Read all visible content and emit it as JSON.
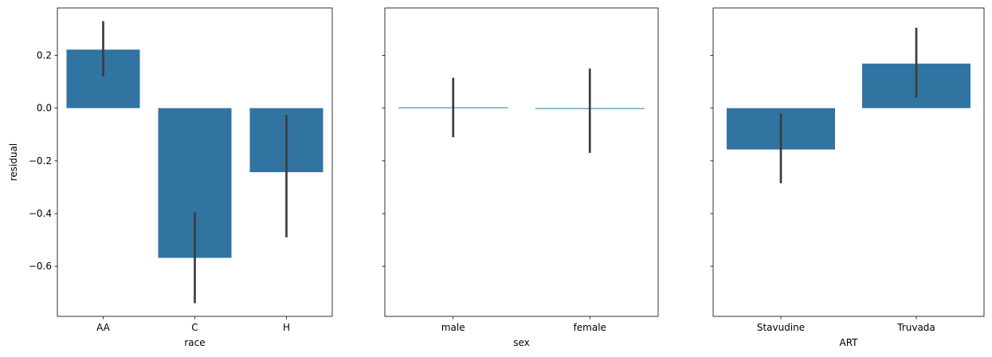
{
  "chart_data": [
    {
      "type": "bar",
      "xlabel": "race",
      "ylabel": "residual",
      "ylim": [
        -0.79,
        0.38
      ],
      "yticks": [
        0.2,
        0.0,
        -0.2,
        -0.4,
        -0.6
      ],
      "ytick_labels": [
        "0.2",
        "0.0",
        "−0.2",
        "−0.4",
        "−0.6"
      ],
      "categories": [
        "AA",
        "C",
        "H"
      ],
      "values": [
        0.222,
        -0.568,
        -0.243
      ],
      "ci_low": [
        0.12,
        -0.74,
        -0.49
      ],
      "ci_high": [
        0.33,
        -0.395,
        -0.025
      ]
    },
    {
      "type": "bar",
      "xlabel": "sex",
      "ylabel": "",
      "ylim": [
        -0.79,
        0.38
      ],
      "yticks": [
        0.2,
        0.0,
        -0.2,
        -0.4,
        -0.6
      ],
      "categories": [
        "male",
        "female"
      ],
      "values": [
        0.003,
        -0.003
      ],
      "ci_low": [
        -0.11,
        -0.17
      ],
      "ci_high": [
        0.115,
        0.15
      ]
    },
    {
      "type": "bar",
      "xlabel": "ART",
      "ylabel": "",
      "ylim": [
        -0.79,
        0.38
      ],
      "yticks": [
        0.2,
        0.0,
        -0.2,
        -0.4,
        -0.6
      ],
      "categories": [
        "Stavudine",
        "Truvada"
      ],
      "values": [
        -0.157,
        0.169
      ],
      "ci_low": [
        -0.285,
        0.04
      ],
      "ci_high": [
        -0.02,
        0.305
      ]
    }
  ],
  "colors": {
    "bar": "#3274a1",
    "errorbar": "#3d3d3d",
    "spine": "#000000"
  }
}
